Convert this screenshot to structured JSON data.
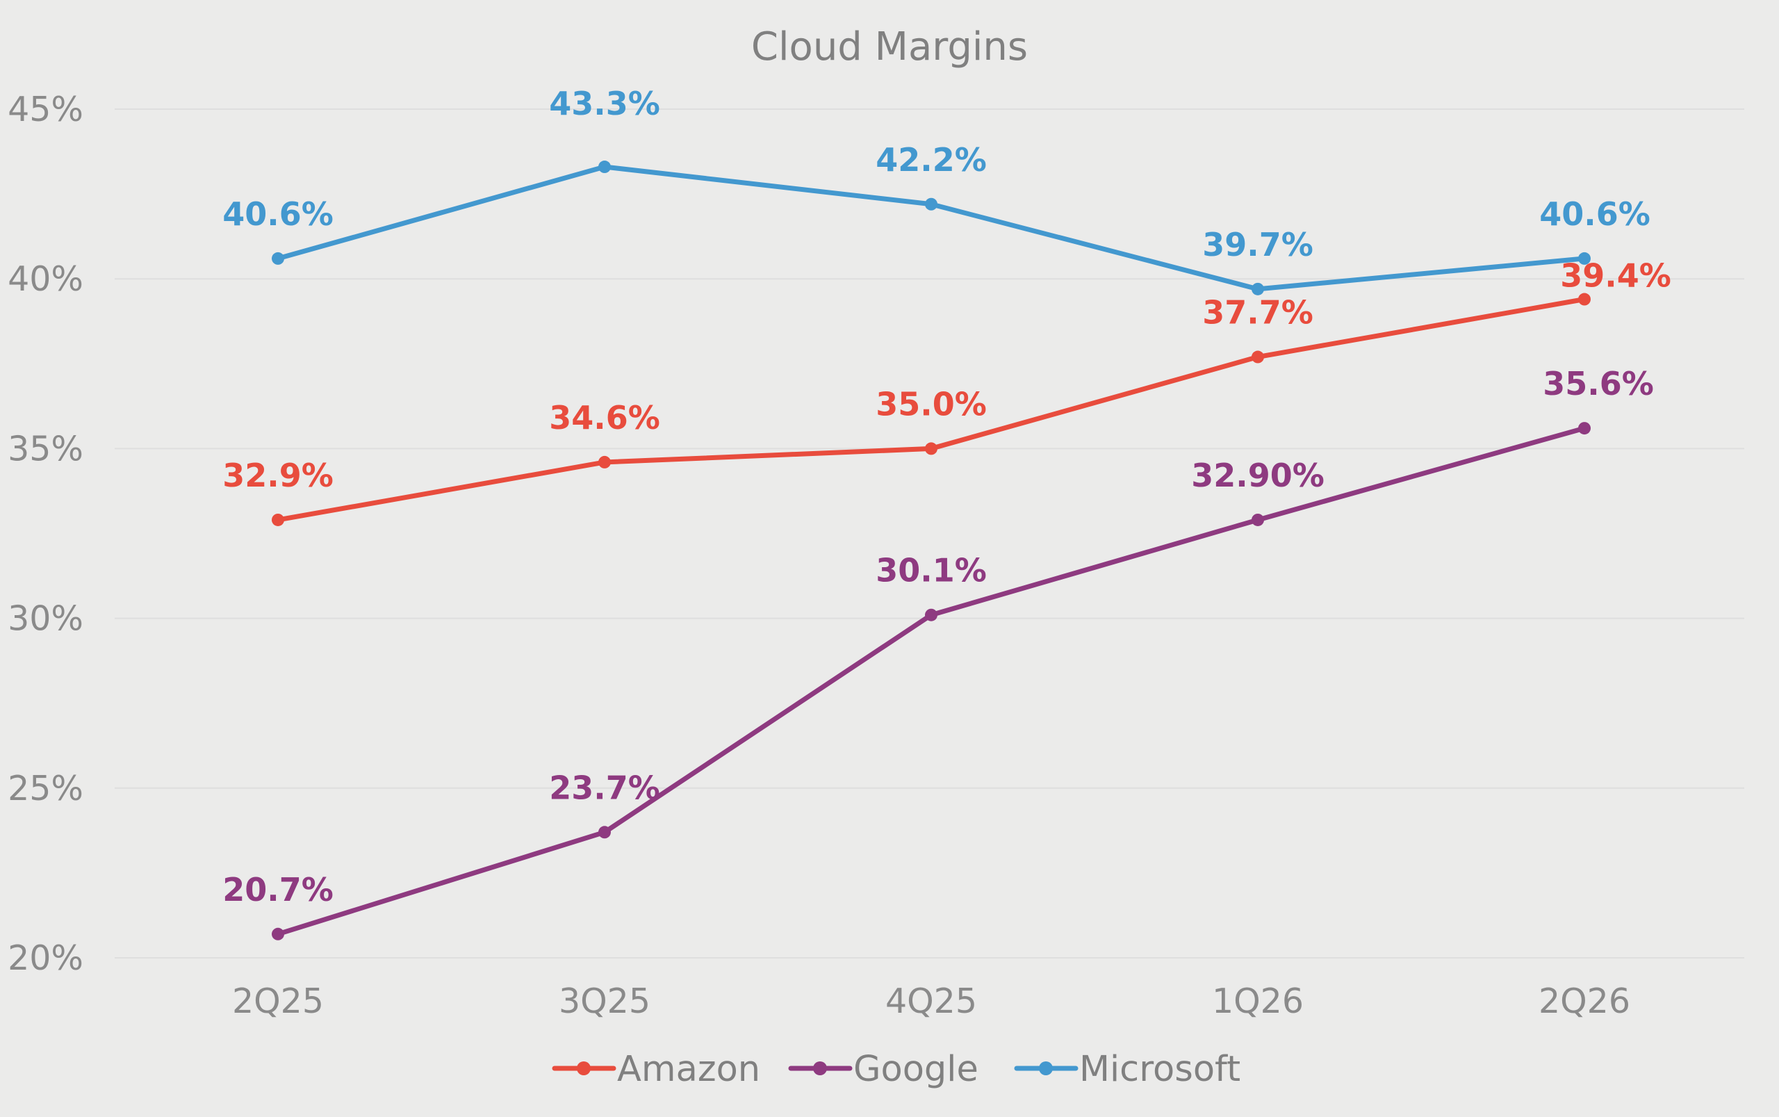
{
  "chart_data": {
    "type": "line",
    "title": "Cloud Margins",
    "xlabel": "",
    "ylabel": "",
    "categories": [
      "2Q25",
      "3Q25",
      "4Q25",
      "1Q26",
      "2Q26"
    ],
    "ylim": [
      20,
      45
    ],
    "yticks": [
      {
        "value": 20,
        "label": "20%"
      },
      {
        "value": 25,
        "label": "25%"
      },
      {
        "value": 30,
        "label": "30%"
      },
      {
        "value": 35,
        "label": "35%"
      },
      {
        "value": 40,
        "label": "40%"
      },
      {
        "value": 45,
        "label": "45%"
      }
    ],
    "grid": true,
    "legend_position": "bottom",
    "series": [
      {
        "name": "Amazon",
        "color": "#e84c3d",
        "values": [
          32.9,
          34.6,
          35.0,
          37.7,
          39.4
        ],
        "labels": [
          "32.9%",
          "34.6%",
          "35.0%",
          "37.7%",
          "39.4%"
        ]
      },
      {
        "name": "Google",
        "color": "#8e3a80",
        "values": [
          20.7,
          23.7,
          30.1,
          32.9,
          35.6
        ],
        "labels": [
          "20.7%",
          "23.7%",
          "30.1%",
          "32.90%",
          "35.6%"
        ]
      },
      {
        "name": "Microsoft",
        "color": "#4398cf",
        "values": [
          40.6,
          43.3,
          42.2,
          39.7,
          40.6
        ],
        "labels": [
          "40.6%",
          "43.3%",
          "42.2%",
          "39.7%",
          "40.6%"
        ]
      }
    ]
  }
}
